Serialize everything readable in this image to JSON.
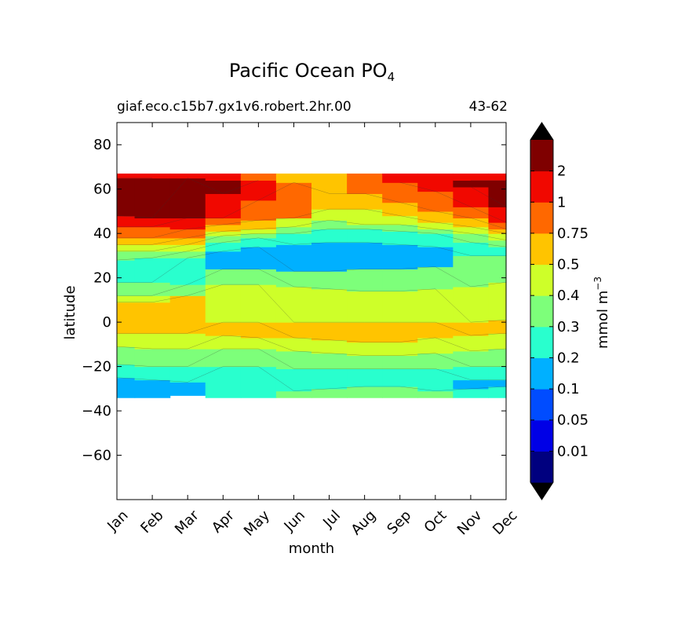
{
  "chart_data": {
    "type": "heatmap",
    "title": "Pacific Ocean PO",
    "title_subscript": "4",
    "subtitle_left": "giaf.eco.c15b7.gx1v6.robert.2hr.00",
    "subtitle_right": "43-62",
    "xlabel": "month",
    "ylabel": "latitude",
    "x_categories": [
      "Jan",
      "Feb",
      "Mar",
      "Apr",
      "May",
      "Jun",
      "Jul",
      "Aug",
      "Sep",
      "Oct",
      "Nov",
      "Dec"
    ],
    "xlim": [
      0,
      11
    ],
    "ylim": [
      -80,
      90
    ],
    "y_ticks": [
      80,
      60,
      40,
      20,
      0,
      -20,
      -40,
      -60
    ],
    "y_tick_labels": [
      "80",
      "60",
      "40",
      "20",
      "0",
      "−20",
      "−40",
      "−60"
    ],
    "data_lat_range": [
      -34,
      67
    ],
    "colorbar": {
      "label": "mmol m",
      "label_superscript": "−3",
      "levels": [
        0,
        0.01,
        0.05,
        0.1,
        0.2,
        0.3,
        0.4,
        0.5,
        0.75,
        1,
        2,
        3
      ],
      "tick_labels": [
        "0.01",
        "0.05",
        "0.1",
        "0.2",
        "0.3",
        "0.4",
        "0.5",
        "0.75",
        "1",
        "2"
      ],
      "colors": [
        "#00007f",
        "#0000e6",
        "#004cff",
        "#00b0ff",
        "#29ffce",
        "#7dff7a",
        "#ceff29",
        "#ffc400",
        "#ff6800",
        "#f10800",
        "#7f0000"
      ],
      "extend_colors": {
        "under": "#000000",
        "over": "#000000"
      }
    },
    "month_bands": [
      {
        "month": "Jan",
        "bands": [
          [
            -34,
            -25,
            3
          ],
          [
            -25,
            -19,
            4
          ],
          [
            -19,
            -11,
            5
          ],
          [
            -11,
            -5,
            6
          ],
          [
            -5,
            9,
            7
          ],
          [
            9,
            12,
            6
          ],
          [
            12,
            18,
            5
          ],
          [
            18,
            28,
            4
          ],
          [
            28,
            32,
            5
          ],
          [
            32,
            35,
            6
          ],
          [
            35,
            38,
            7
          ],
          [
            38,
            43,
            8
          ],
          [
            43,
            48,
            9
          ],
          [
            48,
            65,
            10
          ],
          [
            65,
            67,
            9
          ]
        ]
      },
      {
        "month": "Feb",
        "bands": [
          [
            -34,
            -26,
            3
          ],
          [
            -26,
            -20,
            4
          ],
          [
            -20,
            -12,
            5
          ],
          [
            -12,
            -5,
            6
          ],
          [
            -5,
            9,
            7
          ],
          [
            9,
            12,
            6
          ],
          [
            12,
            18,
            5
          ],
          [
            18,
            29,
            4
          ],
          [
            29,
            32,
            5
          ],
          [
            32,
            35,
            6
          ],
          [
            35,
            38,
            7
          ],
          [
            38,
            43,
            8
          ],
          [
            43,
            47,
            9
          ],
          [
            47,
            65,
            10
          ],
          [
            65,
            67,
            9
          ]
        ]
      },
      {
        "month": "Mar",
        "bands": [
          [
            -33,
            -27,
            3
          ],
          [
            -27,
            -20,
            4
          ],
          [
            -20,
            -12,
            5
          ],
          [
            -12,
            -5,
            6
          ],
          [
            -5,
            12,
            7
          ],
          [
            12,
            17,
            5
          ],
          [
            17,
            29,
            4
          ],
          [
            29,
            32,
            5
          ],
          [
            32,
            35,
            6
          ],
          [
            35,
            38,
            7
          ],
          [
            38,
            42,
            8
          ],
          [
            42,
            47,
            9
          ],
          [
            47,
            65,
            10
          ],
          [
            65,
            67,
            9
          ]
        ]
      },
      {
        "month": "Apr",
        "bands": [
          [
            -34,
            -20,
            4
          ],
          [
            -20,
            -12,
            5
          ],
          [
            -12,
            -6,
            6
          ],
          [
            -6,
            0,
            7
          ],
          [
            0,
            17,
            6
          ],
          [
            17,
            24,
            5
          ],
          [
            24,
            32,
            3
          ],
          [
            32,
            36,
            4
          ],
          [
            36,
            39,
            5
          ],
          [
            39,
            41,
            6
          ],
          [
            41,
            44,
            7
          ],
          [
            44,
            47,
            8
          ],
          [
            47,
            58,
            9
          ],
          [
            58,
            64,
            10
          ],
          [
            64,
            67,
            9
          ]
        ]
      },
      {
        "month": "May",
        "bands": [
          [
            -34,
            -20,
            4
          ],
          [
            -20,
            -12,
            5
          ],
          [
            -12,
            -7,
            6
          ],
          [
            -7,
            0,
            7
          ],
          [
            0,
            17,
            6
          ],
          [
            17,
            24,
            5
          ],
          [
            24,
            34,
            3
          ],
          [
            34,
            38,
            4
          ],
          [
            38,
            40,
            5
          ],
          [
            40,
            42,
            6
          ],
          [
            42,
            46,
            7
          ],
          [
            46,
            55,
            8
          ],
          [
            55,
            64,
            9
          ],
          [
            64,
            67,
            8
          ]
        ]
      },
      {
        "month": "Jun",
        "bands": [
          [
            -34,
            -31,
            5
          ],
          [
            -31,
            -21,
            4
          ],
          [
            -21,
            -13,
            5
          ],
          [
            -13,
            -7,
            6
          ],
          [
            -7,
            0,
            7
          ],
          [
            0,
            16,
            6
          ],
          [
            16,
            23,
            5
          ],
          [
            23,
            35,
            3
          ],
          [
            35,
            40,
            4
          ],
          [
            40,
            43,
            5
          ],
          [
            43,
            47,
            6
          ],
          [
            47,
            63,
            8
          ],
          [
            63,
            67,
            7
          ]
        ]
      },
      {
        "month": "Jul",
        "bands": [
          [
            -34,
            -30,
            5
          ],
          [
            -30,
            -21,
            4
          ],
          [
            -21,
            -14,
            5
          ],
          [
            -14,
            -8,
            6
          ],
          [
            -8,
            0,
            7
          ],
          [
            0,
            15,
            6
          ],
          [
            15,
            23,
            5
          ],
          [
            23,
            36,
            3
          ],
          [
            36,
            42,
            4
          ],
          [
            42,
            46,
            5
          ],
          [
            46,
            51,
            6
          ],
          [
            51,
            58,
            7
          ],
          [
            58,
            67,
            7
          ]
        ]
      },
      {
        "month": "Aug",
        "bands": [
          [
            -34,
            -29,
            5
          ],
          [
            -29,
            -21,
            4
          ],
          [
            -21,
            -15,
            5
          ],
          [
            -15,
            -9,
            6
          ],
          [
            -9,
            0,
            7
          ],
          [
            0,
            14,
            6
          ],
          [
            14,
            24,
            5
          ],
          [
            24,
            36,
            3
          ],
          [
            36,
            42,
            4
          ],
          [
            42,
            44,
            5
          ],
          [
            44,
            51,
            6
          ],
          [
            51,
            58,
            7
          ],
          [
            58,
            67,
            8
          ]
        ]
      },
      {
        "month": "Sep",
        "bands": [
          [
            -34,
            -29,
            5
          ],
          [
            -29,
            -21,
            4
          ],
          [
            -21,
            -15,
            5
          ],
          [
            -15,
            -9,
            6
          ],
          [
            -9,
            0,
            7
          ],
          [
            0,
            14,
            6
          ],
          [
            14,
            24,
            5
          ],
          [
            24,
            35,
            3
          ],
          [
            35,
            41,
            4
          ],
          [
            41,
            44,
            5
          ],
          [
            44,
            48,
            6
          ],
          [
            48,
            54,
            7
          ],
          [
            54,
            63,
            8
          ],
          [
            63,
            67,
            9
          ]
        ]
      },
      {
        "month": "Oct",
        "bands": [
          [
            -34,
            -31,
            5
          ],
          [
            -31,
            -21,
            4
          ],
          [
            -21,
            -14,
            5
          ],
          [
            -14,
            -7,
            6
          ],
          [
            -7,
            0,
            7
          ],
          [
            0,
            15,
            6
          ],
          [
            15,
            25,
            5
          ],
          [
            25,
            34,
            3
          ],
          [
            34,
            40,
            4
          ],
          [
            40,
            42,
            5
          ],
          [
            42,
            45,
            6
          ],
          [
            45,
            50,
            7
          ],
          [
            50,
            59,
            8
          ],
          [
            59,
            67,
            9
          ]
        ]
      },
      {
        "month": "Nov",
        "bands": [
          [
            -34,
            -30,
            4
          ],
          [
            -30,
            -26,
            3
          ],
          [
            -26,
            -20,
            4
          ],
          [
            -20,
            -13,
            5
          ],
          [
            -13,
            -6,
            6
          ],
          [
            -6,
            0,
            7
          ],
          [
            0,
            16,
            6
          ],
          [
            16,
            30,
            5
          ],
          [
            30,
            36,
            4
          ],
          [
            36,
            40,
            5
          ],
          [
            40,
            43,
            6
          ],
          [
            43,
            47,
            7
          ],
          [
            47,
            52,
            8
          ],
          [
            52,
            61,
            9
          ],
          [
            61,
            64,
            10
          ],
          [
            64,
            67,
            9
          ]
        ]
      },
      {
        "month": "Dec",
        "bands": [
          [
            -34,
            -29,
            4
          ],
          [
            -29,
            -26,
            3
          ],
          [
            -26,
            -20,
            4
          ],
          [
            -20,
            -12,
            5
          ],
          [
            -12,
            -5,
            6
          ],
          [
            -5,
            1,
            7
          ],
          [
            1,
            18,
            6
          ],
          [
            18,
            30,
            5
          ],
          [
            30,
            34,
            4
          ],
          [
            34,
            37,
            5
          ],
          [
            37,
            40,
            6
          ],
          [
            40,
            42,
            7
          ],
          [
            42,
            45,
            8
          ],
          [
            45,
            52,
            9
          ],
          [
            52,
            64,
            10
          ],
          [
            64,
            67,
            9
          ]
        ]
      }
    ]
  }
}
